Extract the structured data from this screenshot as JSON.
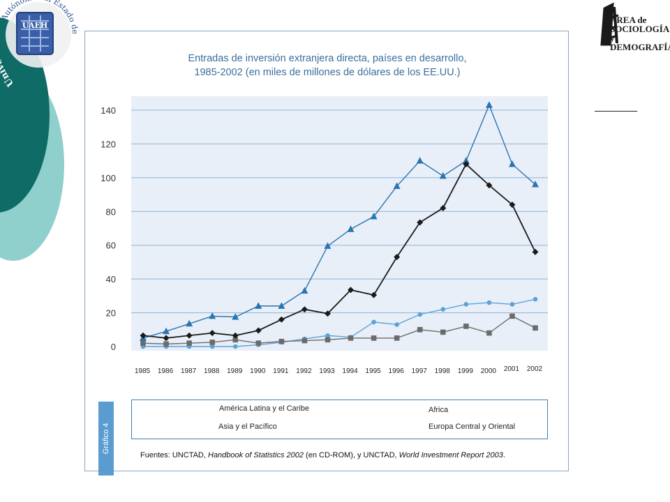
{
  "decor": {
    "university_arc_text_left": "Universidad",
    "university_arc_text_right": "Autónoma del Estado de Hidalgo",
    "seal_initials": "UAEH",
    "logo_right": {
      "line1": "AREA de",
      "line2": "SOCIOLOGÍA",
      "line3": "y DEMOGRAFÍA"
    },
    "colors": {
      "teal_dark": "#0f6b66",
      "teal_light": "#8fcfcc",
      "plot_bg": "#e9eff8",
      "accent_blue": "#3a7fb5"
    }
  },
  "figure": {
    "tag": "Gráfico 4",
    "source": {
      "prefix": "Fuentes: UNCTAD, ",
      "book": "Handbook of Statistics 2002",
      "mid": " (en CD-ROM), y UNCTAD, ",
      "report": "World Investment Report 2003",
      "end": "."
    }
  },
  "chart_data": {
    "type": "line",
    "title_line1": "Entradas de inversión extranjera directa, países en desarrollo,",
    "title_line2": "1985-2002 (en miles de millones de dólares de los EE.UU.)",
    "x": [
      "1985",
      "1986",
      "1987",
      "1988",
      "1989",
      "1990",
      "1991",
      "1992",
      "1993",
      "1994",
      "1995",
      "1996",
      "1997",
      "1998",
      "1999",
      "2000",
      "2001",
      "2002"
    ],
    "yticks": [
      "0",
      "20",
      "40",
      "60",
      "80",
      "100",
      "120",
      "140"
    ],
    "ylim": [
      0,
      148
    ],
    "grid": true,
    "legend_position": "bottom",
    "series": [
      {
        "name": "América Latina y el Caribe",
        "marker": "diamond",
        "color": "#1a1a1a",
        "values": [
          6.5,
          5,
          6.5,
          8,
          6.5,
          9.5,
          16,
          22,
          19.5,
          33.5,
          30.5,
          53,
          73.5,
          82,
          108,
          95.5,
          84,
          56
        ]
      },
      {
        "name": "Asia y el Pacífico",
        "marker": "triangle",
        "color": "#2a74b0",
        "values": [
          5,
          9,
          13.5,
          18,
          17.5,
          24,
          24,
          33,
          59.5,
          69.5,
          77,
          95,
          110,
          101,
          110,
          143,
          108,
          96
        ]
      },
      {
        "name": "Africa",
        "marker": "square",
        "color": "#6b6b6b",
        "values": [
          2,
          1.5,
          2,
          2.5,
          4,
          2,
          3,
          3.5,
          4,
          5,
          5,
          5,
          10,
          8.5,
          12,
          8,
          18,
          11
        ]
      },
      {
        "name": "Europa Central y Oriental",
        "marker": "circle",
        "color": "#5aa3d6",
        "values": [
          0,
          0,
          0,
          0,
          0,
          1,
          2.5,
          4.5,
          6.5,
          5.5,
          14.5,
          13,
          19,
          22,
          25,
          26,
          25,
          28
        ]
      }
    ]
  }
}
